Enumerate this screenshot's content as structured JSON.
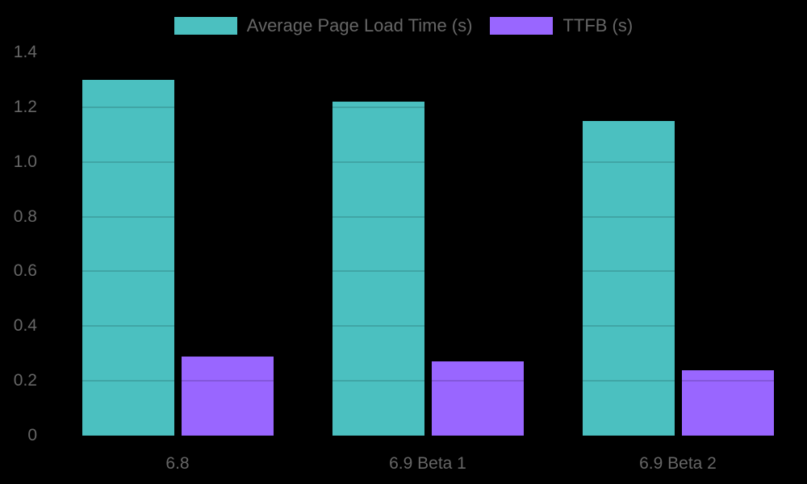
{
  "chart_data": {
    "type": "bar",
    "title": "",
    "categories": [
      "6.8",
      "6.9 Beta 1",
      "6.9 Beta 2"
    ],
    "series": [
      {
        "name": "Average Page Load Time (s)",
        "color": "#4BC0C0",
        "values": [
          1.3,
          1.22,
          1.15
        ]
      },
      {
        "name": "TTFB (s)",
        "color": "#9966FF",
        "values": [
          0.29,
          0.27,
          0.24
        ]
      }
    ],
    "xlabel": "",
    "ylabel": "",
    "ylim": [
      0,
      1.4
    ],
    "ytick_step": 0.2,
    "ytick_labels": [
      "0",
      "0.2",
      "0.4",
      "0.6",
      "0.8",
      "1.0",
      "1.2",
      "1.4"
    ],
    "legend_position": "top",
    "grid": "horizontal gridlines, visible as dark overlay lines on bars only",
    "background_color": "#000000",
    "text_color": "#666666",
    "gridline_overlay_color": "rgba(0,0,0,0.14)"
  }
}
